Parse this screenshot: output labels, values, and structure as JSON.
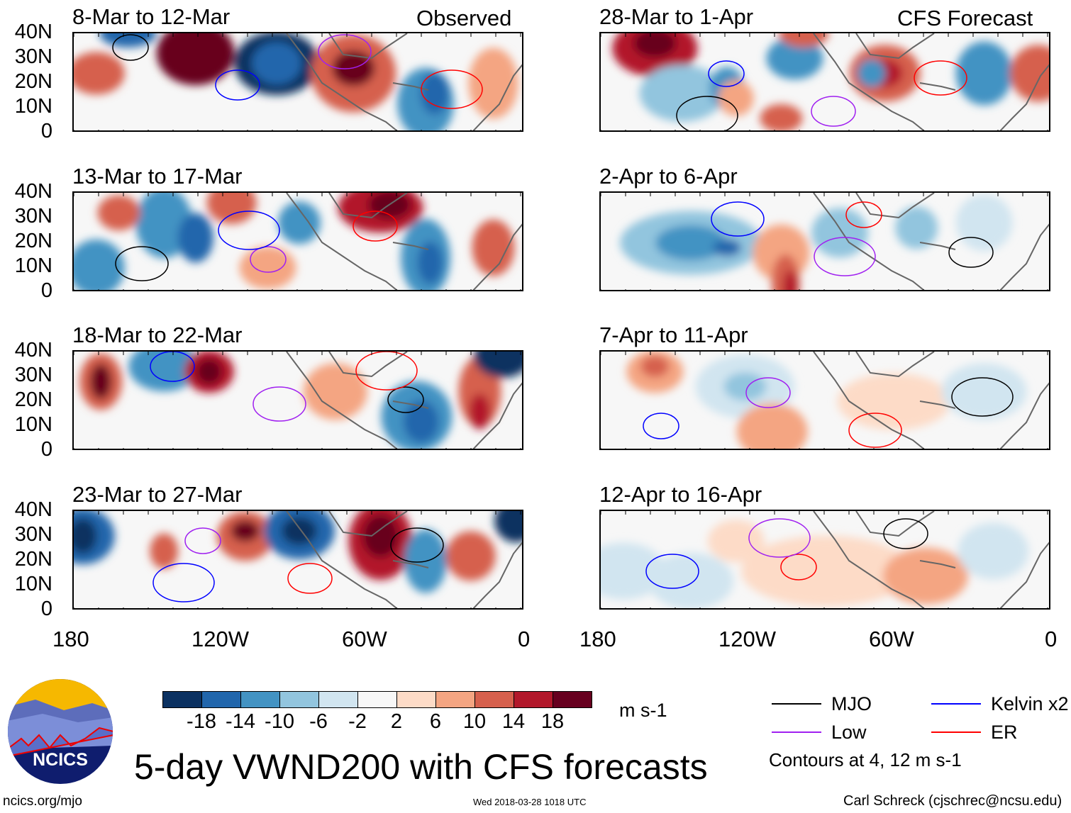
{
  "panels": [
    {
      "title": "8-Mar to 12-Mar",
      "tag": "Observed"
    },
    {
      "title": "28-Mar to 1-Apr",
      "tag": "CFS Forecast"
    },
    {
      "title": "13-Mar to 17-Mar",
      "tag": ""
    },
    {
      "title": "2-Apr to 6-Apr",
      "tag": ""
    },
    {
      "title": "18-Mar to 22-Mar",
      "tag": ""
    },
    {
      "title": "7-Apr to 11-Apr",
      "tag": ""
    },
    {
      "title": "23-Mar to 27-Mar",
      "tag": ""
    },
    {
      "title": "12-Apr to 16-Apr",
      "tag": ""
    }
  ],
  "lat_labels": [
    "40N",
    "30N",
    "20N",
    "10N",
    "0"
  ],
  "lon_labels": [
    "180",
    "120W",
    "60W",
    "0"
  ],
  "colorbar": {
    "ticks": [
      "-18",
      "-14",
      "-10",
      "-6",
      "-2",
      "2",
      "6",
      "10",
      "14",
      "18"
    ],
    "colors": [
      "#0b3161",
      "#2166ac",
      "#4393c3",
      "#92c5de",
      "#d1e5f0",
      "#f7f7f7",
      "#fddbc7",
      "#f4a582",
      "#d6604d",
      "#b2182b",
      "#67001f"
    ],
    "units": "m s-1"
  },
  "legend": {
    "items": [
      {
        "label": "MJO",
        "color": "#000000"
      },
      {
        "label": "Kelvin x2",
        "color": "#0000ff"
      },
      {
        "label": "Low",
        "color": "#a020f0"
      },
      {
        "label": "ER",
        "color": "#ff0000"
      }
    ],
    "note": "Contours at 4, 12 m s-1"
  },
  "title": "5-day VWND200 with CFS forecasts",
  "logo_text": "NCICS",
  "url": "ncics.org/mjo",
  "timestamp": "Wed 2018-03-28 1018 UTC",
  "credit": "Carl Schreck (cjschrec@ncsu.edu)"
}
